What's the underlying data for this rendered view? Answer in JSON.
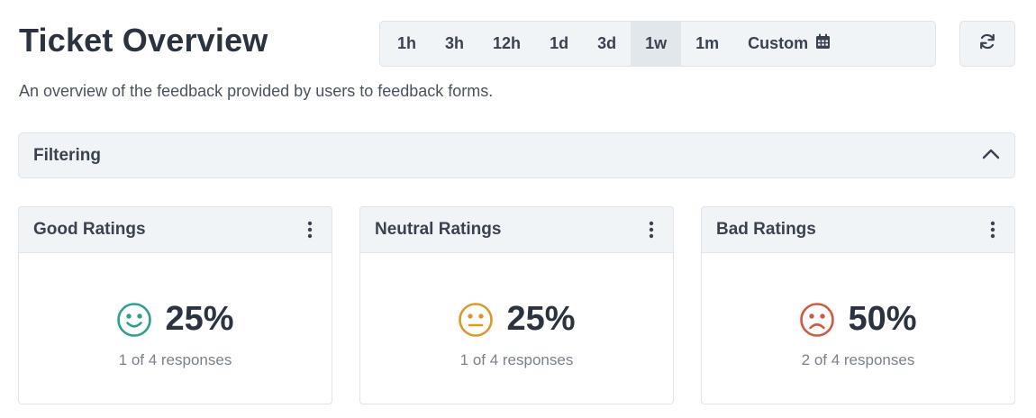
{
  "header": {
    "title": "Ticket Overview",
    "subtitle": "An overview of the feedback provided by users to feedback forms."
  },
  "time_range": {
    "options": [
      "1h",
      "3h",
      "12h",
      "1d",
      "3d",
      "1w",
      "1m"
    ],
    "custom_label": "Custom",
    "selected": "1w"
  },
  "filter": {
    "label": "Filtering",
    "expanded": true
  },
  "cards": [
    {
      "title": "Good Ratings",
      "percent": "25%",
      "responses": "1 of 4 responses",
      "icon": "smile-icon",
      "color": "#2f9e8f"
    },
    {
      "title": "Neutral Ratings",
      "percent": "25%",
      "responses": "1 of 4 responses",
      "icon": "neutral-face-icon",
      "color": "#d99a2b"
    },
    {
      "title": "Bad Ratings",
      "percent": "50%",
      "responses": "2 of 4 responses",
      "icon": "frown-icon",
      "color": "#d05a3f"
    }
  ]
}
